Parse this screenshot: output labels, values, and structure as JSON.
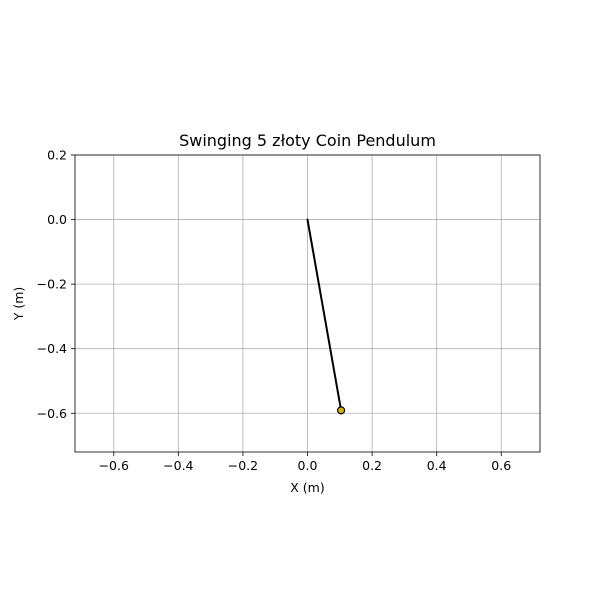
{
  "chart_data": {
    "type": "line",
    "title": "Swinging 5 złoty Coin Pendulum",
    "xlabel": "X (m)",
    "ylabel": "Y (m)",
    "xlim": [
      -0.72,
      0.72
    ],
    "ylim": [
      -0.72,
      0.2
    ],
    "xticks": [
      -0.6,
      -0.4,
      -0.2,
      0.0,
      0.2,
      0.4,
      0.6
    ],
    "xtick_labels": [
      "−0.6",
      "−0.4",
      "−0.2",
      "0.0",
      "0.2",
      "0.4",
      "0.6"
    ],
    "yticks": [
      0.2,
      0.0,
      -0.2,
      -0.4,
      -0.6
    ],
    "ytick_labels": [
      "0.2",
      "0.0",
      "−0.2",
      "−0.4",
      "−0.6"
    ],
    "grid": true,
    "series": [
      {
        "kind": "rod",
        "x": [
          0.0,
          0.104
        ],
        "y": [
          0.0,
          -0.591
        ],
        "color": "#000000"
      },
      {
        "kind": "bob",
        "x": [
          0.104
        ],
        "y": [
          -0.591
        ],
        "color": "#d4b000"
      }
    ]
  }
}
